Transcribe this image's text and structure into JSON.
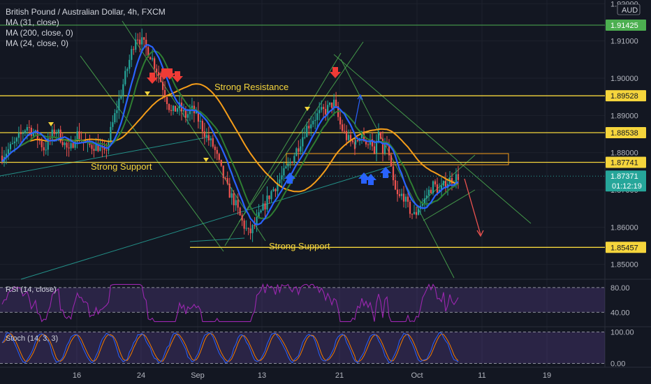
{
  "header": {
    "title": "British Pound / Australian Dollar, 4h, FXCM",
    "indicators": [
      "MA (31, close)",
      "MA (200, close, 0)",
      "MA (24, close, 0)"
    ]
  },
  "currency": "AUD",
  "colors": {
    "background": "#131722",
    "up": "#26a69a",
    "down": "#ef5350",
    "ma_fast": "#2962ff",
    "ma_200": "#f59d19",
    "ma_24": "#2e7d32",
    "level": "#f5d53c",
    "channel": "#4caf50",
    "trendline": "#26a69a",
    "rsi": "#9c27b0",
    "stoch_k": "#2962ff",
    "stoch_d": "#f57c00",
    "grid": "#1e222d"
  },
  "annotations": {
    "resistance": "Strong Resistance",
    "support_mid": "Strong Support",
    "support_low": "Strong Support"
  },
  "price_axis_labels": [
    "1.92000",
    "1.91000",
    "1.90000",
    "1.89000",
    "1.88000",
    "1.87000",
    "1.86000",
    "1.85000"
  ],
  "price_tags": [
    {
      "value": "1.91425",
      "kind": "green"
    },
    {
      "value": "1.89528",
      "kind": "yellow"
    },
    {
      "value": "1.88538",
      "kind": "yellow"
    },
    {
      "value": "1.87741",
      "kind": "yellow"
    },
    {
      "value": "1.87371",
      "kind": "current"
    },
    {
      "value": "1.85457",
      "kind": "yellow"
    }
  ],
  "countdown": "01:12:19",
  "rsi": {
    "label": "RSI (14, close)",
    "levels": [
      "80.00",
      "40.00"
    ]
  },
  "stoch": {
    "label": "Stoch (14, 3, 3)",
    "levels": [
      "100.00",
      "0.00"
    ]
  },
  "time_axis_labels": [
    "16",
    "24",
    "Sep",
    "13",
    "21",
    "Oct",
    "11",
    "19"
  ],
  "chart_data": [
    {
      "type": "candlestick",
      "title": "British Pound / Australian Dollar, 4h, FXCM",
      "x_ticks": [
        "16",
        "24",
        "Sep",
        "13",
        "21",
        "Oct",
        "11",
        "19"
      ],
      "ylim": [
        1.846,
        1.921
      ],
      "close_path": [
        {
          "t": 0,
          "p": 1.8792
        },
        {
          "t": 0.04,
          "p": 1.8828
        },
        {
          "t": 0.07,
          "p": 1.8872
        },
        {
          "t": 0.1,
          "p": 1.8842
        },
        {
          "t": 0.12,
          "p": 1.8809
        },
        {
          "t": 0.15,
          "p": 1.8862
        },
        {
          "t": 0.17,
          "p": 1.8837
        },
        {
          "t": 0.19,
          "p": 1.8798
        },
        {
          "t": 0.21,
          "p": 1.8853
        },
        {
          "t": 0.24,
          "p": 1.8818
        },
        {
          "t": 0.27,
          "p": 1.882
        },
        {
          "t": 0.29,
          "p": 1.8793
        },
        {
          "t": 0.31,
          "p": 1.8865
        },
        {
          "t": 0.34,
          "p": 1.8972
        },
        {
          "t": 0.36,
          "p": 1.9045
        },
        {
          "t": 0.38,
          "p": 1.9118
        },
        {
          "t": 0.4,
          "p": 1.9092
        },
        {
          "t": 0.42,
          "p": 1.9063
        },
        {
          "t": 0.44,
          "p": 1.902
        },
        {
          "t": 0.46,
          "p": 1.8965
        },
        {
          "t": 0.48,
          "p": 1.8905
        },
        {
          "t": 0.5,
          "p": 1.8925
        },
        {
          "t": 0.52,
          "p": 1.8898
        },
        {
          "t": 0.54,
          "p": 1.8915
        },
        {
          "t": 0.56,
          "p": 1.8882
        },
        {
          "t": 0.58,
          "p": 1.8843
        },
        {
          "t": 0.6,
          "p": 1.8815
        },
        {
          "t": 0.62,
          "p": 1.8755
        },
        {
          "t": 0.64,
          "p": 1.87
        },
        {
          "t": 0.66,
          "p": 1.8665
        },
        {
          "t": 0.68,
          "p": 1.8615
        },
        {
          "t": 0.7,
          "p": 1.858
        },
        {
          "t": 0.72,
          "p": 1.8612
        },
        {
          "t": 0.74,
          "p": 1.865
        },
        {
          "t": 0.76,
          "p": 1.869
        },
        {
          "t": 0.78,
          "p": 1.8718
        },
        {
          "t": 0.8,
          "p": 1.8745
        },
        {
          "t": 0.82,
          "p": 1.878
        },
        {
          "t": 0.84,
          "p": 1.8818
        },
        {
          "t": 0.86,
          "p": 1.8862
        },
        {
          "t": 0.88,
          "p": 1.889
        },
        {
          "t": 0.9,
          "p": 1.8905
        },
        {
          "t": 0.92,
          "p": 1.8915
        },
        {
          "t": 0.94,
          "p": 1.8935
        },
        {
          "t": 0.96,
          "p": 1.887
        },
        {
          "t": 0.98,
          "p": 1.8835
        },
        {
          "t": 1.0,
          "p": 1.8822
        }
      ],
      "close_path_2": [
        {
          "t": 0,
          "p": 1.8822
        },
        {
          "t": 0.06,
          "p": 1.8862
        },
        {
          "t": 0.1,
          "p": 1.881
        },
        {
          "t": 0.14,
          "p": 1.885
        },
        {
          "t": 0.18,
          "p": 1.878
        },
        {
          "t": 0.22,
          "p": 1.886
        },
        {
          "t": 0.26,
          "p": 1.88
        },
        {
          "t": 0.3,
          "p": 1.883
        },
        {
          "t": 0.34,
          "p": 1.876
        },
        {
          "t": 0.38,
          "p": 1.87
        },
        {
          "t": 0.42,
          "p": 1.8675
        },
        {
          "t": 0.46,
          "p": 1.869
        },
        {
          "t": 0.5,
          "p": 1.866
        },
        {
          "t": 0.54,
          "p": 1.864
        },
        {
          "t": 0.58,
          "p": 1.863
        },
        {
          "t": 0.62,
          "p": 1.866
        },
        {
          "t": 0.66,
          "p": 1.8665
        },
        {
          "t": 0.7,
          "p": 1.869
        },
        {
          "t": 0.76,
          "p": 1.8715
        },
        {
          "t": 0.82,
          "p": 1.8695
        },
        {
          "t": 0.88,
          "p": 1.872
        },
        {
          "t": 1.0,
          "p": 1.8737
        }
      ],
      "levels": [
        1.91425,
        1.89528,
        1.88538,
        1.87741,
        1.85457
      ],
      "last": 1.87371
    },
    {
      "type": "line",
      "title": "RSI (14, close)",
      "ylim": [
        20,
        90
      ],
      "levels": [
        80,
        40
      ]
    },
    {
      "type": "line",
      "title": "Stoch (14, 3, 3)",
      "ylim": [
        -10,
        110
      ],
      "levels": [
        100,
        0
      ]
    }
  ]
}
